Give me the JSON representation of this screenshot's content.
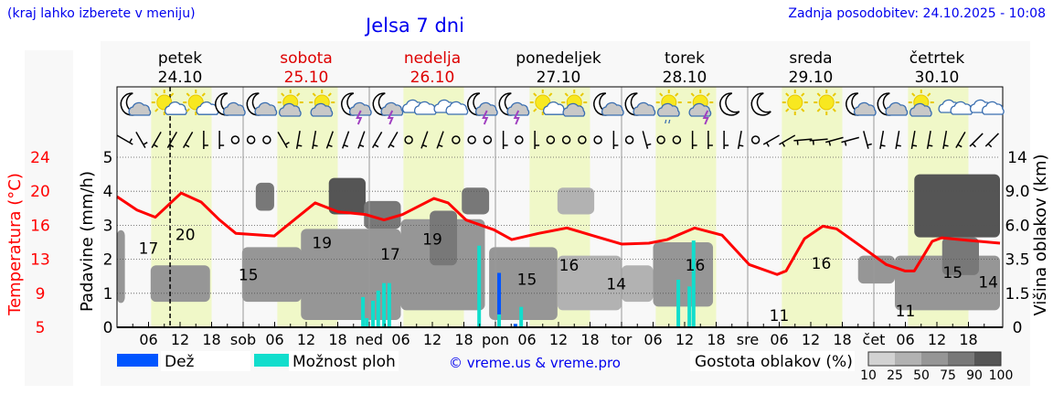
{
  "header": {
    "hint": "(kraj lahko izberete v meniju)",
    "title": "Jelsa 7 dni",
    "updated": "Zadnja posodobitev: 24.10.2025 - 10:08"
  },
  "days": [
    {
      "name": "petek",
      "date": "24.10",
      "weekend": false
    },
    {
      "name": "sobota",
      "date": "25.10",
      "weekend": true
    },
    {
      "name": "nedelja",
      "date": "26.10",
      "weekend": true
    },
    {
      "name": "ponedeljek",
      "date": "27.10",
      "weekend": false
    },
    {
      "name": "torek",
      "date": "28.10",
      "weekend": false
    },
    {
      "name": "sreda",
      "date": "29.10",
      "weekend": false
    },
    {
      "name": "četrtek",
      "date": "30.10",
      "weekend": false
    }
  ],
  "colors": {
    "temp": "#ff0000",
    "rain": "#0055ff",
    "showers": "#11ddcc",
    "daylight": "#f0f8c8",
    "weekend": "#dd0000",
    "link": "#0000ee"
  },
  "chart_data": {
    "type": "meteogram",
    "title": "Jelsa 7 dni",
    "x_unit": "hours since 24.10 00:00",
    "xlim": [
      0,
      168
    ],
    "now_hour": 10.1,
    "daylight": [
      [
        6.5,
        18
      ],
      [
        30.5,
        42
      ],
      [
        54.5,
        66
      ],
      [
        78.5,
        90
      ],
      [
        102.5,
        114
      ],
      [
        126.5,
        138
      ],
      [
        150.5,
        162
      ]
    ],
    "x_tick_labels": [
      "06",
      "12",
      "18",
      "sob",
      "06",
      "12",
      "18",
      "ned",
      "06",
      "12",
      "18",
      "pon",
      "06",
      "12",
      "18",
      "tor",
      "06",
      "12",
      "18",
      "sre",
      "06",
      "12",
      "18",
      "čet",
      "06",
      "12",
      "18"
    ],
    "left_axis_temp": {
      "label": "Temperatura (°C)",
      "ticks": [
        "5",
        "9",
        "13",
        "16",
        "20",
        "24"
      ]
    },
    "left_axis_precip": {
      "label": "Padavine (mm/h)",
      "ticks": [
        "0",
        "1",
        "2",
        "3",
        "4",
        "5"
      ],
      "ylim": [
        0,
        5
      ]
    },
    "right_axis_cloud": {
      "label": "Višina oblakov (km)",
      "ticks": [
        "0",
        "1.5",
        "3.5",
        "6.0",
        "9.0",
        "14"
      ],
      "ylim": [
        0,
        14
      ]
    },
    "temperature": [
      [
        0,
        19.6
      ],
      [
        3.8,
        18.1
      ],
      [
        7.3,
        17.3
      ],
      [
        12.2,
        20
      ],
      [
        16,
        19
      ],
      [
        19.5,
        17
      ],
      [
        22.6,
        15.5
      ],
      [
        29.9,
        15.2
      ],
      [
        37.7,
        18.9
      ],
      [
        42.1,
        17.9
      ],
      [
        47.3,
        17.6
      ],
      [
        50.8,
        17.0
      ],
      [
        54.3,
        17.6
      ],
      [
        60.3,
        19.4
      ],
      [
        63,
        18.9
      ],
      [
        66.4,
        17.0
      ],
      [
        71.7,
        15.9
      ],
      [
        75.1,
        14.8
      ],
      [
        80.3,
        15.5
      ],
      [
        85.6,
        16.1
      ],
      [
        90.8,
        15.2
      ],
      [
        96,
        14.3
      ],
      [
        101.2,
        14.4
      ],
      [
        104.7,
        14.8
      ],
      [
        109.9,
        16.1
      ],
      [
        115.1,
        15.3
      ],
      [
        120.3,
        12
      ],
      [
        125.6,
        10.9
      ],
      [
        127.3,
        11.3
      ],
      [
        130.8,
        14.9
      ],
      [
        134.3,
        16.3
      ],
      [
        136.9,
        16.0
      ],
      [
        141.2,
        14.2
      ],
      [
        146.4,
        12
      ],
      [
        149.9,
        11.3
      ],
      [
        151.7,
        11.3
      ],
      [
        155.1,
        14.6
      ],
      [
        156.9,
        15.0
      ],
      [
        162.1,
        14.7
      ],
      [
        168,
        14.4
      ]
    ],
    "temp_labels": [
      {
        "h": 6,
        "t": "17",
        "pos": 16.3
      },
      {
        "h": 13,
        "t": "20",
        "pos": 17.8
      },
      {
        "h": 25,
        "t": "15",
        "pos": 13.3
      },
      {
        "h": 39,
        "t": "19",
        "pos": 16.9
      },
      {
        "h": 52,
        "t": "17",
        "pos": 15.6
      },
      {
        "h": 60,
        "t": "19",
        "pos": 17.3
      },
      {
        "h": 78,
        "t": "15",
        "pos": 12.8
      },
      {
        "h": 86,
        "t": "16",
        "pos": 14.4
      },
      {
        "h": 95,
        "t": "14",
        "pos": 12.3
      },
      {
        "h": 110,
        "t": "16",
        "pos": 14.4
      },
      {
        "h": 126,
        "t": "11",
        "pos": 8.8
      },
      {
        "h": 134,
        "t": "16",
        "pos": 14.6
      },
      {
        "h": 150,
        "t": "11",
        "pos": 9.3
      },
      {
        "h": 159,
        "t": "15",
        "pos": 13.6
      },
      {
        "h": 168,
        "t": "14",
        "pos": 12.5
      }
    ],
    "precip_bars": [
      {
        "h": 46.8,
        "showers": 0.89,
        "rain": 0
      },
      {
        "h": 47.5,
        "showers": 0.27,
        "rain": 0
      },
      {
        "h": 48.7,
        "showers": 0.78,
        "rain": 0
      },
      {
        "h": 49.7,
        "showers": 1.08,
        "rain": 0
      },
      {
        "h": 50.8,
        "showers": 1.3,
        "rain": 0
      },
      {
        "h": 51.8,
        "showers": 1.3,
        "rain": 0
      },
      {
        "h": 68.9,
        "showers": 2.4,
        "rain": 0
      },
      {
        "h": 72.7,
        "showers": 0.38,
        "rain": 1.22
      },
      {
        "h": 75.8,
        "showers": 0,
        "rain": 0.1
      },
      {
        "h": 76.9,
        "showers": 0.6,
        "rain": 0
      },
      {
        "h": 106.8,
        "showers": 1.4,
        "rain": 0
      },
      {
        "h": 108.9,
        "showers": 1.2,
        "rain": 0
      },
      {
        "h": 109.7,
        "showers": 2.55,
        "rain": 0
      }
    ],
    "cloud_patches": [
      [
        0,
        1.5,
        2,
        8,
        50
      ],
      [
        6.4,
        17.7,
        2.1,
        5.1,
        50
      ],
      [
        23.8,
        35.1,
        2.1,
        6.6,
        50
      ],
      [
        26.4,
        29.9,
        9.6,
        11.9,
        75
      ],
      [
        35,
        54,
        0.6,
        8.1,
        50
      ],
      [
        40.3,
        47.3,
        9.3,
        12.3,
        90
      ],
      [
        47,
        54,
        8.1,
        10.4,
        75
      ],
      [
        54,
        70,
        1.4,
        8.9,
        50
      ],
      [
        59.5,
        64.7,
        5.1,
        9.6,
        75
      ],
      [
        65.6,
        70.8,
        9.3,
        11.5,
        75
      ],
      [
        70.8,
        83.8,
        0.6,
        6.6,
        50
      ],
      [
        83.8,
        96,
        1.4,
        5.9,
        25
      ],
      [
        83.8,
        90.8,
        9.3,
        11.5,
        25
      ],
      [
        96,
        102,
        2.1,
        5.1,
        25
      ],
      [
        102,
        113.4,
        1.7,
        7,
        50
      ],
      [
        141,
        148,
        3.6,
        5.9,
        50
      ],
      [
        148,
        168,
        1.4,
        5.9,
        50
      ],
      [
        151.7,
        168,
        7.4,
        12.6,
        90
      ],
      [
        157,
        164,
        4.3,
        7.4,
        75
      ]
    ],
    "weather_icons": [
      "moon-cloud",
      "sun-small-cloud",
      "sun-small-cloud",
      "moon-cloud",
      "moon-cloud",
      "sun-cloud",
      "sun-cloud",
      "moon-thunder",
      "moon-thunder",
      "cloudy",
      "cloudy",
      "moon-thunder",
      "moon-thunder",
      "sun-small-cloud",
      "sun-cloud",
      "moon-cloud",
      "moon-cloud",
      "sun-rain",
      "sun-thunder",
      "moon",
      "moon",
      "sun",
      "sun",
      "moon-cloud",
      "moon-cloud",
      "sun-cloud",
      "cloudy",
      "cloudy"
    ],
    "wind": [
      30,
      60,
      120,
      120,
      120,
      90,
      90,
      "calm",
      "calm",
      "calm",
      60,
      100,
      100,
      110,
      110,
      110,
      120,
      120,
      "calm",
      110,
      110,
      "calm",
      "calm",
      "calm",
      90,
      "calm",
      90,
      "calm",
      "calm",
      "calm",
      "calm",
      90,
      "calm",
      75,
      "calm",
      "calm",
      90,
      90,
      90,
      100,
      "calm",
      150,
      150,
      175,
      175,
      165,
      165,
      75,
      100,
      100,
      100,
      100,
      100,
      120,
      135,
      135
    ],
    "legend": {
      "rain": "Dež",
      "showers": "Možnost ploh",
      "credit": "© vreme.us & vreme.pro",
      "cloud_density_title": "Gostota oblakov (%)",
      "cloud_density_levels": [
        "10",
        "25",
        "50",
        "75",
        "90",
        "100"
      ],
      "cloud_density_colors": [
        "#d2d2d2",
        "#b2b2b2",
        "#969696",
        "#787878",
        "#555555"
      ]
    }
  }
}
